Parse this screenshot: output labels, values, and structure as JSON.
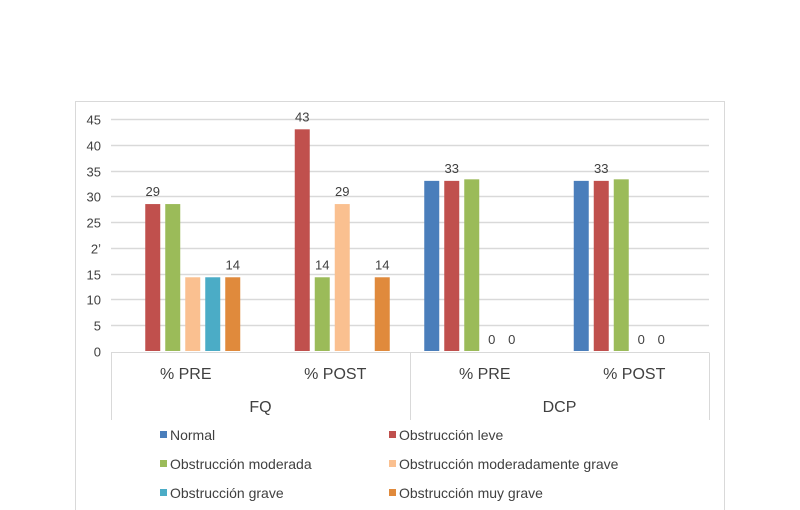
{
  "chart_data": {
    "type": "bar",
    "title": "",
    "xlabel": "",
    "ylabel": "",
    "ylim": [
      0,
      45
    ],
    "ytick_step": 5,
    "yticks": [
      "0",
      "5",
      "10",
      "15",
      "2ʼ",
      "25",
      "30",
      "35",
      "40",
      "45"
    ],
    "grid": true,
    "groups": [
      {
        "name": "FQ",
        "categories": [
          "% PRE",
          "% POST"
        ]
      },
      {
        "name": "DCP",
        "categories": [
          "% PRE",
          "% POST"
        ]
      }
    ],
    "categories": [
      "FQ % PRE",
      "FQ % POST",
      "DCP % PRE",
      "DCP % POST"
    ],
    "series": [
      {
        "name": "Normal",
        "color": "#4a7ebb",
        "values": [
          null,
          null,
          33,
          33
        ]
      },
      {
        "name": "Obstrucción leve",
        "color": "#c0504d",
        "values": [
          28.5,
          43,
          33,
          33
        ]
      },
      {
        "name": "Obstrucción moderada",
        "color": "#9bbb59",
        "values": [
          28.5,
          14.3,
          33.3,
          33.3
        ]
      },
      {
        "name": "Obstrucción moderadamente grave",
        "color": "#fac090",
        "values": [
          14.3,
          28.5,
          0,
          0
        ]
      },
      {
        "name": "Obstrucción grave",
        "color": "#4bacc6",
        "values": [
          14.3,
          null,
          0,
          0
        ]
      },
      {
        "name": "Obstrucción muy grave",
        "color": "#e08a3c",
        "values": [
          14.3,
          14.3,
          null,
          null
        ]
      }
    ],
    "data_labels": [
      {
        "category": 0,
        "series": 1,
        "text": "29"
      },
      {
        "category": 0,
        "series": 5,
        "text": "14"
      },
      {
        "category": 1,
        "series": 1,
        "text": "43"
      },
      {
        "category": 1,
        "series": 2,
        "text": "14"
      },
      {
        "category": 1,
        "series": 3,
        "text": "29"
      },
      {
        "category": 1,
        "series": 5,
        "text": "14"
      },
      {
        "category": 2,
        "series": 1,
        "text": "33"
      },
      {
        "category": 2,
        "series": 3,
        "text": "0"
      },
      {
        "category": 2,
        "series": 4,
        "text": "0"
      },
      {
        "category": 3,
        "series": 1,
        "text": "33"
      },
      {
        "category": 3,
        "series": 3,
        "text": "0"
      },
      {
        "category": 3,
        "series": 4,
        "text": "0"
      }
    ],
    "legend": {
      "position": "bottom",
      "columns": 2,
      "entries": [
        "Normal",
        "Obstrucción leve",
        "Obstrucción moderada",
        "Obstrucción moderadamente grave",
        "Obstrucción grave",
        "Obstrucción muy grave"
      ]
    }
  }
}
